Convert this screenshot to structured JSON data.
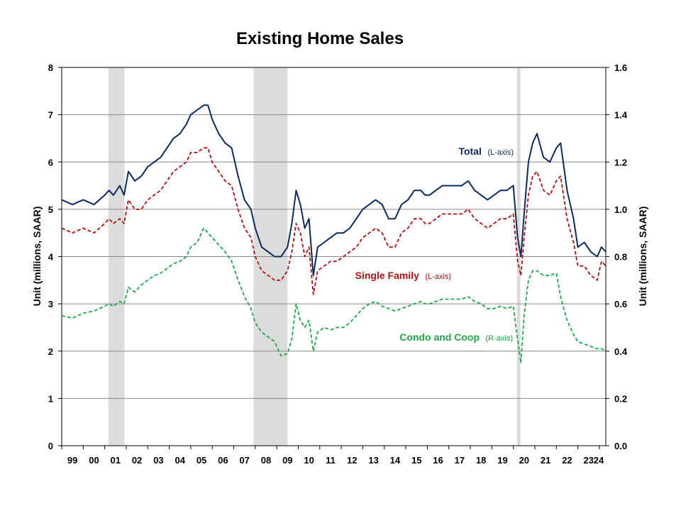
{
  "chart_data": {
    "type": "line",
    "title": "Existing Home Sales",
    "ylabel_left": "Unit (millions, SAAR)",
    "ylabel_right": "Unit (millions, SAAR)",
    "ylim_left": [
      0,
      8
    ],
    "ylim_right": [
      0,
      1.6
    ],
    "yticks_left": [
      "0",
      "1",
      "2",
      "3",
      "4",
      "5",
      "6",
      "7",
      "8"
    ],
    "yticks_right": [
      "0.0",
      "0.2",
      "0.4",
      "0.6",
      "0.8",
      "1.0",
      "1.2",
      "1.4",
      "1.6"
    ],
    "x_tick_labels": [
      "99",
      "00",
      "01",
      "02",
      "03",
      "04",
      "05",
      "06",
      "07",
      "08",
      "09",
      "10",
      "11",
      "12",
      "13",
      "14",
      "15",
      "16",
      "17",
      "18",
      "19",
      "20",
      "21",
      "22",
      "23",
      "24"
    ],
    "xlim": [
      1999,
      2024.3
    ],
    "grid": true,
    "recessions": [
      [
        2001.17,
        2001.92
      ],
      [
        2007.92,
        2009.5
      ],
      [
        2020.17,
        2020.33
      ]
    ],
    "series": [
      {
        "name": "Total",
        "axis_note": "(L-axis)",
        "color": "#0d2a5e",
        "dash": "solid",
        "axis": "left",
        "x": [
          1999,
          1999.5,
          2000,
          2000.5,
          2001,
          2001.2,
          2001.4,
          2001.7,
          2001.9,
          2002.1,
          2002.4,
          2002.7,
          2003,
          2003.3,
          2003.6,
          2003.9,
          2004.2,
          2004.5,
          2004.8,
          2005,
          2005.3,
          2005.6,
          2005.8,
          2006,
          2006.3,
          2006.6,
          2006.9,
          2007.2,
          2007.5,
          2007.8,
          2008,
          2008.3,
          2008.6,
          2008.9,
          2009.2,
          2009.5,
          2009.7,
          2009.9,
          2010.1,
          2010.3,
          2010.5,
          2010.7,
          2010.9,
          2011.2,
          2011.5,
          2011.8,
          2012.1,
          2012.4,
          2012.7,
          2013,
          2013.3,
          2013.6,
          2013.9,
          2014.2,
          2014.5,
          2014.8,
          2015.1,
          2015.4,
          2015.7,
          2015.9,
          2016.1,
          2016.4,
          2016.7,
          2017,
          2017.3,
          2017.6,
          2017.9,
          2018.2,
          2018.5,
          2018.8,
          2019.1,
          2019.4,
          2019.7,
          2020,
          2020.2,
          2020.35,
          2020.5,
          2020.7,
          2020.9,
          2021.1,
          2021.4,
          2021.7,
          2022,
          2022.2,
          2022.5,
          2022.8,
          2023,
          2023.3,
          2023.6,
          2023.9,
          2024.1,
          2024.3
        ],
        "values": [
          5.2,
          5.1,
          5.2,
          5.1,
          5.3,
          5.4,
          5.3,
          5.5,
          5.3,
          5.8,
          5.6,
          5.7,
          5.9,
          6.0,
          6.1,
          6.3,
          6.5,
          6.6,
          6.8,
          7.0,
          7.1,
          7.2,
          7.2,
          6.9,
          6.6,
          6.4,
          6.3,
          5.7,
          5.2,
          5.0,
          4.6,
          4.2,
          4.1,
          4.0,
          4.0,
          4.2,
          4.7,
          5.4,
          5.1,
          4.6,
          4.8,
          3.6,
          4.2,
          4.3,
          4.4,
          4.5,
          4.5,
          4.6,
          4.8,
          5.0,
          5.1,
          5.2,
          5.1,
          4.8,
          4.8,
          5.1,
          5.2,
          5.4,
          5.4,
          5.3,
          5.3,
          5.4,
          5.5,
          5.5,
          5.5,
          5.5,
          5.6,
          5.4,
          5.3,
          5.2,
          5.3,
          5.4,
          5.4,
          5.5,
          4.4,
          4.0,
          4.9,
          6.0,
          6.4,
          6.6,
          6.1,
          6.0,
          6.3,
          6.4,
          5.4,
          4.8,
          4.2,
          4.3,
          4.1,
          4.0,
          4.2,
          4.1
        ]
      },
      {
        "name": "Single Family",
        "axis_note": "(L-axis)",
        "color": "#b01010",
        "dash": "dashed",
        "axis": "left",
        "x": [
          1999,
          1999.5,
          2000,
          2000.5,
          2001,
          2001.2,
          2001.4,
          2001.7,
          2001.9,
          2002.1,
          2002.4,
          2002.7,
          2003,
          2003.3,
          2003.6,
          2003.9,
          2004.2,
          2004.5,
          2004.8,
          2005,
          2005.3,
          2005.6,
          2005.8,
          2006,
          2006.3,
          2006.6,
          2006.9,
          2007.2,
          2007.5,
          2007.8,
          2008,
          2008.3,
          2008.6,
          2008.9,
          2009.2,
          2009.5,
          2009.7,
          2009.9,
          2010.1,
          2010.3,
          2010.5,
          2010.7,
          2010.9,
          2011.2,
          2011.5,
          2011.8,
          2012.1,
          2012.4,
          2012.7,
          2013,
          2013.3,
          2013.6,
          2013.9,
          2014.2,
          2014.5,
          2014.8,
          2015.1,
          2015.4,
          2015.7,
          2015.9,
          2016.1,
          2016.4,
          2016.7,
          2017,
          2017.3,
          2017.6,
          2017.9,
          2018.2,
          2018.5,
          2018.8,
          2019.1,
          2019.4,
          2019.7,
          2020,
          2020.2,
          2020.35,
          2020.5,
          2020.7,
          2020.9,
          2021.1,
          2021.4,
          2021.7,
          2022,
          2022.2,
          2022.5,
          2022.8,
          2023,
          2023.3,
          2023.6,
          2023.9,
          2024.1,
          2024.3
        ],
        "values": [
          4.6,
          4.5,
          4.6,
          4.5,
          4.7,
          4.8,
          4.7,
          4.8,
          4.7,
          5.2,
          5.0,
          5.0,
          5.2,
          5.3,
          5.4,
          5.6,
          5.8,
          5.9,
          6.0,
          6.2,
          6.2,
          6.3,
          6.3,
          6.0,
          5.8,
          5.6,
          5.5,
          5.0,
          4.6,
          4.4,
          4.0,
          3.7,
          3.6,
          3.5,
          3.5,
          3.7,
          4.1,
          4.7,
          4.5,
          4.0,
          4.2,
          3.2,
          3.7,
          3.8,
          3.9,
          3.9,
          4.0,
          4.1,
          4.2,
          4.4,
          4.5,
          4.6,
          4.5,
          4.2,
          4.2,
          4.5,
          4.6,
          4.8,
          4.8,
          4.7,
          4.7,
          4.8,
          4.9,
          4.9,
          4.9,
          4.9,
          5.0,
          4.8,
          4.7,
          4.6,
          4.7,
          4.8,
          4.8,
          4.9,
          3.9,
          3.6,
          4.4,
          5.3,
          5.7,
          5.8,
          5.4,
          5.3,
          5.6,
          5.7,
          4.8,
          4.3,
          3.8,
          3.8,
          3.6,
          3.5,
          3.9,
          3.8
        ]
      },
      {
        "name": "Condo and Coop",
        "axis_note": "(R-axis)",
        "color": "#1fa84a",
        "dash": "dashed",
        "axis": "right",
        "x": [
          1999,
          1999.5,
          2000,
          2000.5,
          2001,
          2001.2,
          2001.4,
          2001.7,
          2001.9,
          2002.1,
          2002.4,
          2002.7,
          2003,
          2003.3,
          2003.6,
          2003.9,
          2004.2,
          2004.5,
          2004.8,
          2005,
          2005.3,
          2005.6,
          2005.8,
          2006,
          2006.3,
          2006.6,
          2006.9,
          2007.2,
          2007.5,
          2007.8,
          2008,
          2008.3,
          2008.6,
          2008.9,
          2009.2,
          2009.5,
          2009.7,
          2009.9,
          2010.1,
          2010.3,
          2010.5,
          2010.7,
          2010.9,
          2011.2,
          2011.5,
          2011.8,
          2012.1,
          2012.4,
          2012.7,
          2013,
          2013.3,
          2013.6,
          2013.9,
          2014.2,
          2014.5,
          2014.8,
          2015.1,
          2015.4,
          2015.7,
          2015.9,
          2016.1,
          2016.4,
          2016.7,
          2017,
          2017.3,
          2017.6,
          2017.9,
          2018.2,
          2018.5,
          2018.8,
          2019.1,
          2019.4,
          2019.7,
          2020,
          2020.2,
          2020.35,
          2020.5,
          2020.7,
          2020.9,
          2021.1,
          2021.4,
          2021.7,
          2022,
          2022.2,
          2022.5,
          2022.8,
          2023,
          2023.3,
          2023.6,
          2023.9,
          2024.1,
          2024.3
        ],
        "values": [
          0.55,
          0.54,
          0.56,
          0.57,
          0.59,
          0.6,
          0.59,
          0.61,
          0.6,
          0.67,
          0.65,
          0.68,
          0.7,
          0.72,
          0.73,
          0.75,
          0.77,
          0.78,
          0.8,
          0.84,
          0.86,
          0.92,
          0.9,
          0.88,
          0.85,
          0.82,
          0.78,
          0.7,
          0.63,
          0.58,
          0.52,
          0.48,
          0.46,
          0.44,
          0.38,
          0.39,
          0.45,
          0.6,
          0.53,
          0.5,
          0.53,
          0.4,
          0.48,
          0.5,
          0.49,
          0.5,
          0.5,
          0.52,
          0.55,
          0.58,
          0.6,
          0.61,
          0.59,
          0.58,
          0.57,
          0.58,
          0.59,
          0.6,
          0.61,
          0.6,
          0.6,
          0.61,
          0.62,
          0.62,
          0.62,
          0.62,
          0.63,
          0.61,
          0.6,
          0.58,
          0.58,
          0.59,
          0.58,
          0.59,
          0.45,
          0.35,
          0.55,
          0.7,
          0.74,
          0.74,
          0.72,
          0.72,
          0.73,
          0.63,
          0.53,
          0.47,
          0.44,
          0.43,
          0.42,
          0.41,
          0.41,
          0.4
        ]
      }
    ]
  }
}
